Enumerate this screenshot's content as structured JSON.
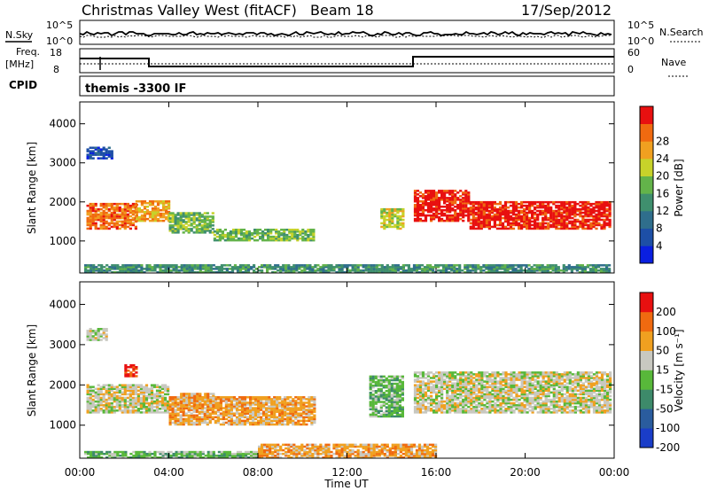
{
  "header": {
    "title": "Christmas Valley West (fitACF)",
    "beam": "Beam 18",
    "date": "17/Sep/2012"
  },
  "strips": {
    "nsky": {
      "label": "N.Sky",
      "tick_top": "10^5",
      "tick_bottom": "10^0"
    },
    "nsearch": {
      "label": "N.Search",
      "tick_top": "10^5",
      "tick_bottom": "10^0"
    },
    "freq": {
      "label_top": "Freq.",
      "label_bottom": "[MHz]",
      "tick_top": "18",
      "tick_bottom": "8"
    },
    "nave": {
      "label": "Nave",
      "tick_top": "60",
      "tick_bottom": "0"
    },
    "cpid": {
      "label": "CPID",
      "value": "themis -3300 IF"
    }
  },
  "chart_data": [
    {
      "type": "heatmap",
      "panel": "power",
      "xlabel": "Time UT",
      "ylabel": "Slant Range [km]",
      "x_ticks": [
        "00:00",
        "04:00",
        "08:00",
        "12:00",
        "16:00",
        "20:00",
        "00:00"
      ],
      "y_ticks": [
        "1000",
        "2000",
        "3000",
        "4000"
      ],
      "xlim_hours": [
        0,
        24
      ],
      "ylim_km": [
        180,
        4560
      ],
      "colorbar": {
        "label": "Power [dB]",
        "ticks": [
          "4",
          "8",
          "12",
          "16",
          "20",
          "24",
          "28"
        ],
        "colors": [
          "#0a1fe0",
          "#1d4fa6",
          "#2f6e8c",
          "#3f8f6e",
          "#63b34a",
          "#c7d22a",
          "#f0a020",
          "#f06a10",
          "#e81010"
        ]
      },
      "bands": [
        {
          "t0": 0.3,
          "t1": 2.5,
          "r0": 1300,
          "r1": 1950,
          "level": 7
        },
        {
          "t0": 2.5,
          "t1": 4.0,
          "r0": 1500,
          "r1": 2000,
          "level": 6
        },
        {
          "t0": 4.0,
          "t1": 6.0,
          "r0": 1200,
          "r1": 1700,
          "level": 4
        },
        {
          "t0": 6.0,
          "t1": 10.5,
          "r0": 1000,
          "r1": 1300,
          "level": 4
        },
        {
          "t0": 13.5,
          "t1": 14.5,
          "r0": 1300,
          "r1": 1800,
          "level": 5
        },
        {
          "t0": 15.0,
          "t1": 17.5,
          "r0": 1500,
          "r1": 2300,
          "level": 8
        },
        {
          "t0": 17.5,
          "t1": 23.8,
          "r0": 1300,
          "r1": 2000,
          "level": 8
        },
        {
          "t0": 0.3,
          "t1": 1.5,
          "r0": 3100,
          "r1": 3400,
          "level": 1
        },
        {
          "t0": 0.2,
          "t1": 23.8,
          "r0": 180,
          "r1": 400,
          "level": 3
        }
      ]
    },
    {
      "type": "heatmap",
      "panel": "velocity",
      "xlabel": "Time UT",
      "ylabel": "Slant Range [km]",
      "x_ticks": [
        "00:00",
        "04:00",
        "08:00",
        "12:00",
        "16:00",
        "20:00",
        "00:00"
      ],
      "y_ticks": [
        "1000",
        "2000",
        "3000",
        "4000"
      ],
      "xlim_hours": [
        0,
        24
      ],
      "ylim_km": [
        180,
        4560
      ],
      "colorbar": {
        "label": "Velocity [m s⁻¹]",
        "ticks": [
          "200",
          "100",
          "50",
          "15",
          "-15",
          "-50",
          "-100",
          "-200"
        ],
        "colors": [
          "#1a3dc8",
          "#2a5c9e",
          "#3d8a6a",
          "#58b83a",
          "#c8c8c0",
          "#f0a020",
          "#f06a10",
          "#e81010"
        ]
      },
      "bands": [
        {
          "t0": 0.3,
          "t1": 4.0,
          "r0": 1300,
          "r1": 2000,
          "level": 4
        },
        {
          "t0": 4.0,
          "t1": 10.5,
          "r0": 1000,
          "r1": 1700,
          "level": 5
        },
        {
          "t0": 13.0,
          "t1": 14.5,
          "r0": 1200,
          "r1": 2200,
          "level": 3
        },
        {
          "t0": 15.0,
          "t1": 23.8,
          "r0": 1300,
          "r1": 2300,
          "level": 4
        },
        {
          "t0": 0.3,
          "t1": 1.2,
          "r0": 3100,
          "r1": 3400,
          "level": 4
        },
        {
          "t0": 2.0,
          "t1": 2.6,
          "r0": 2200,
          "r1": 2500,
          "level": 7
        },
        {
          "t0": 4.5,
          "t1": 6.0,
          "r0": 1400,
          "r1": 1800,
          "level": 5
        },
        {
          "t0": 0.2,
          "t1": 8.0,
          "r0": 180,
          "r1": 350,
          "level": 3
        },
        {
          "t0": 8.0,
          "t1": 16.0,
          "r0": 180,
          "r1": 500,
          "level": 5
        }
      ]
    }
  ]
}
